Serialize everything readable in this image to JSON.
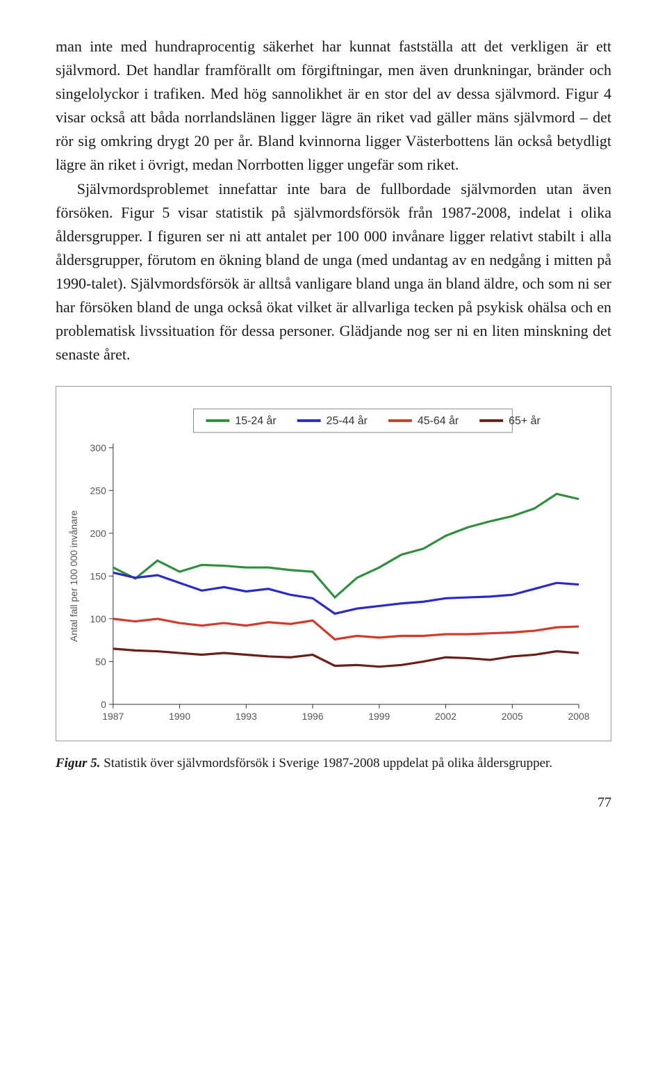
{
  "body": {
    "p1": "man inte med hundraprocentig säkerhet har kunnat fastställa att det verkligen är ett självmord. Det handlar framförallt om förgiftningar, men även drunkningar, bränder och singelolyckor i trafiken. Med hög sannolikhet är en stor del av dessa självmord. Figur 4 visar också att båda norrlandslänen ligger lägre än riket vad gäller mäns självmord – det rör sig omkring drygt 20 per år. Bland kvinnorna ligger Västerbottens län också betydligt lägre än riket i övrigt, medan Norrbotten ligger ungefär som riket.",
    "p2": "Självmordsproblemet innefattar inte bara de fullbordade självmorden utan även försöken. Figur 5 visar statistik på självmordsförsök från 1987-2008, indelat i olika åldersgrupper. I figuren ser ni att antalet per 100 000 invånare ligger relativt stabilt i alla åldersgrupper, förutom en ökning bland de unga (med undantag av en nedgång i mitten på 1990-talet). Självmordsförsök är alltså vanligare bland unga än bland äldre, och som ni ser har försöken bland de unga också ökat vilket är allvarliga tecken på psykisk ohälsa och en problematisk livssituation för dessa personer. Glädjande nog ser ni en liten minskning det senaste året."
  },
  "chart": {
    "type": "line",
    "y_axis_title": "Antal fall per 100 000 invånare",
    "x_ticks": [
      1987,
      1990,
      1993,
      1996,
      1999,
      2002,
      2005,
      2008
    ],
    "y_ticks": [
      0,
      50,
      100,
      150,
      200,
      250,
      300
    ],
    "xlim": [
      1987,
      2008
    ],
    "ylim": [
      0,
      300
    ],
    "legend": [
      {
        "label": "15-24 år",
        "color": "#2f8f3f"
      },
      {
        "label": "25-44 år",
        "color": "#2a2ac8"
      },
      {
        "label": "45-64 år",
        "color": "#d23a2a"
      },
      {
        "label": "65+ år",
        "color": "#6b1f16"
      }
    ],
    "series": {
      "s15_24": {
        "color": "#2f8f3f",
        "x": [
          1987,
          1988,
          1989,
          1990,
          1991,
          1992,
          1993,
          1994,
          1995,
          1996,
          1997,
          1998,
          1999,
          2000,
          2001,
          2002,
          2003,
          2004,
          2005,
          2006,
          2007,
          2008
        ],
        "y": [
          160,
          147,
          168,
          155,
          163,
          162,
          160,
          160,
          157,
          155,
          125,
          148,
          160,
          175,
          182,
          197,
          207,
          214,
          220,
          229,
          246,
          240
        ]
      },
      "s25_44": {
        "color": "#2a2ac8",
        "x": [
          1987,
          1988,
          1989,
          1990,
          1991,
          1992,
          1993,
          1994,
          1995,
          1996,
          1997,
          1998,
          1999,
          2000,
          2001,
          2002,
          2003,
          2004,
          2005,
          2006,
          2007,
          2008
        ],
        "y": [
          154,
          148,
          151,
          142,
          133,
          137,
          132,
          135,
          128,
          124,
          106,
          112,
          115,
          118,
          120,
          124,
          125,
          126,
          128,
          135,
          142,
          140
        ]
      },
      "s45_64": {
        "color": "#d23a2a",
        "x": [
          1987,
          1988,
          1989,
          1990,
          1991,
          1992,
          1993,
          1994,
          1995,
          1996,
          1997,
          1998,
          1999,
          2000,
          2001,
          2002,
          2003,
          2004,
          2005,
          2006,
          2007,
          2008
        ],
        "y": [
          100,
          97,
          100,
          95,
          92,
          95,
          92,
          96,
          94,
          98,
          76,
          80,
          78,
          80,
          80,
          82,
          82,
          83,
          84,
          86,
          90,
          91
        ]
      },
      "s65": {
        "color": "#6b1f16",
        "x": [
          1987,
          1988,
          1989,
          1990,
          1991,
          1992,
          1993,
          1994,
          1995,
          1996,
          1997,
          1998,
          1999,
          2000,
          2001,
          2002,
          2003,
          2004,
          2005,
          2006,
          2007,
          2008
        ],
        "y": [
          65,
          63,
          62,
          60,
          58,
          60,
          58,
          56,
          55,
          58,
          45,
          46,
          44,
          46,
          50,
          55,
          54,
          52,
          56,
          58,
          62,
          60
        ]
      }
    },
    "axis_color": "#333333",
    "tick_label_color": "#555555",
    "background_color": "#ffffff"
  },
  "caption": {
    "fig_label": "Figur 5.",
    "text": " Statistik över självmordsförsök i Sverige 1987-2008 uppdelat på olika åldersgrupper."
  },
  "page_number": "77"
}
